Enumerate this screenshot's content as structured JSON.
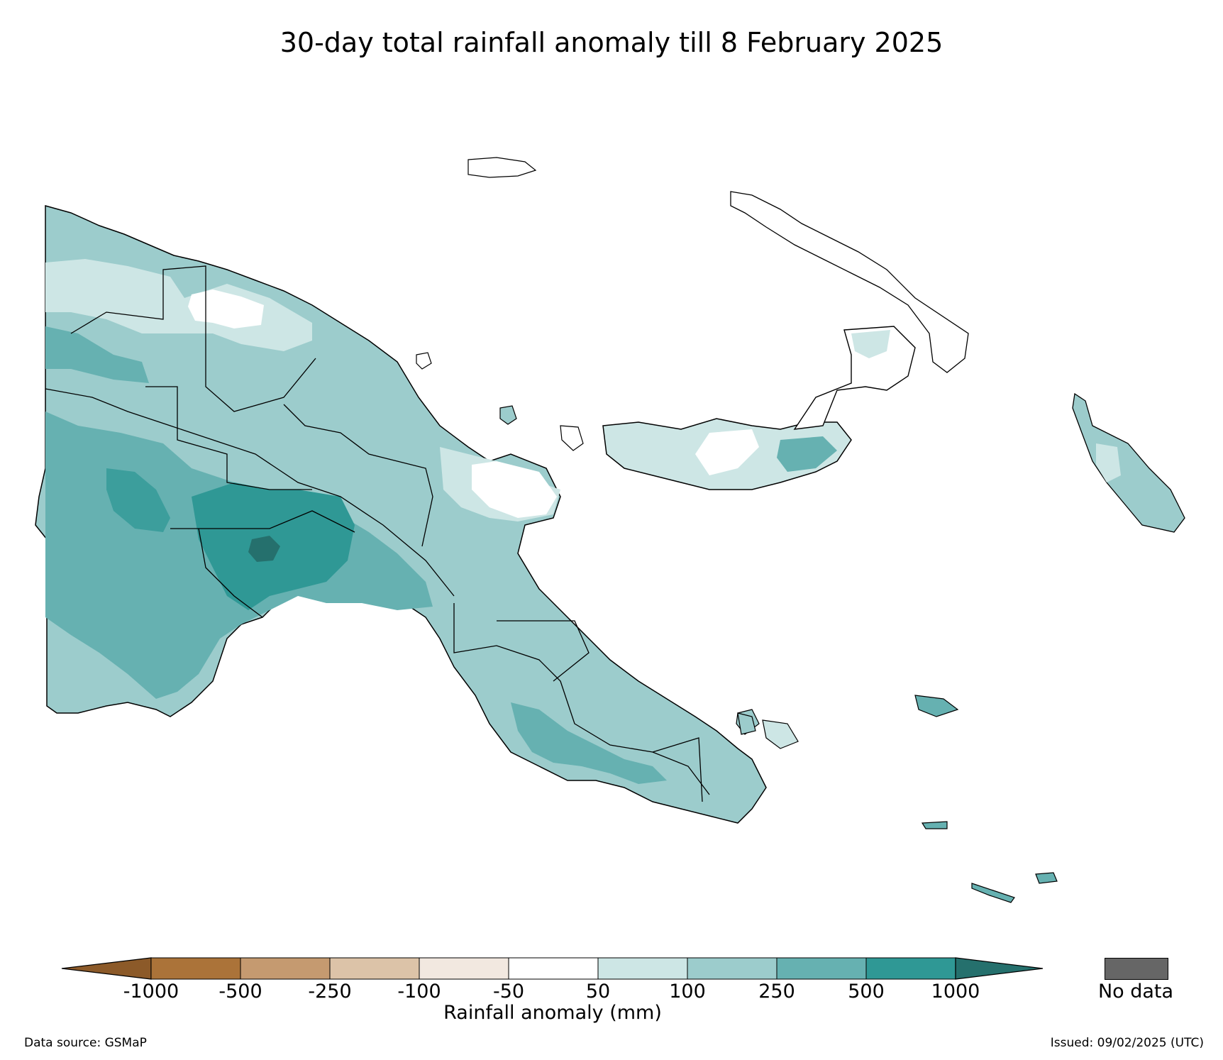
{
  "title": "30-day total rainfall anomaly till 8 February 2025",
  "colorbar": {
    "label": "Rainfall anomaly (mm)",
    "ticks": [
      "-1000",
      "-500",
      "-250",
      "-100",
      "-50",
      "50",
      "100",
      "250",
      "500",
      "1000"
    ],
    "colors": [
      "#8c5a29",
      "#ab7339",
      "#c59a70",
      "#dcc3a8",
      "#f2e8e0",
      "#ffffff",
      "#cde6e5",
      "#9ccccc",
      "#66b1b1",
      "#2f9895",
      "#25706d"
    ],
    "no_data_label": "No data",
    "no_data_color": "#666666"
  },
  "footer": {
    "source": "Data source: GSMaP",
    "issued": "Issued: 09/02/2025 (UTC)"
  }
}
